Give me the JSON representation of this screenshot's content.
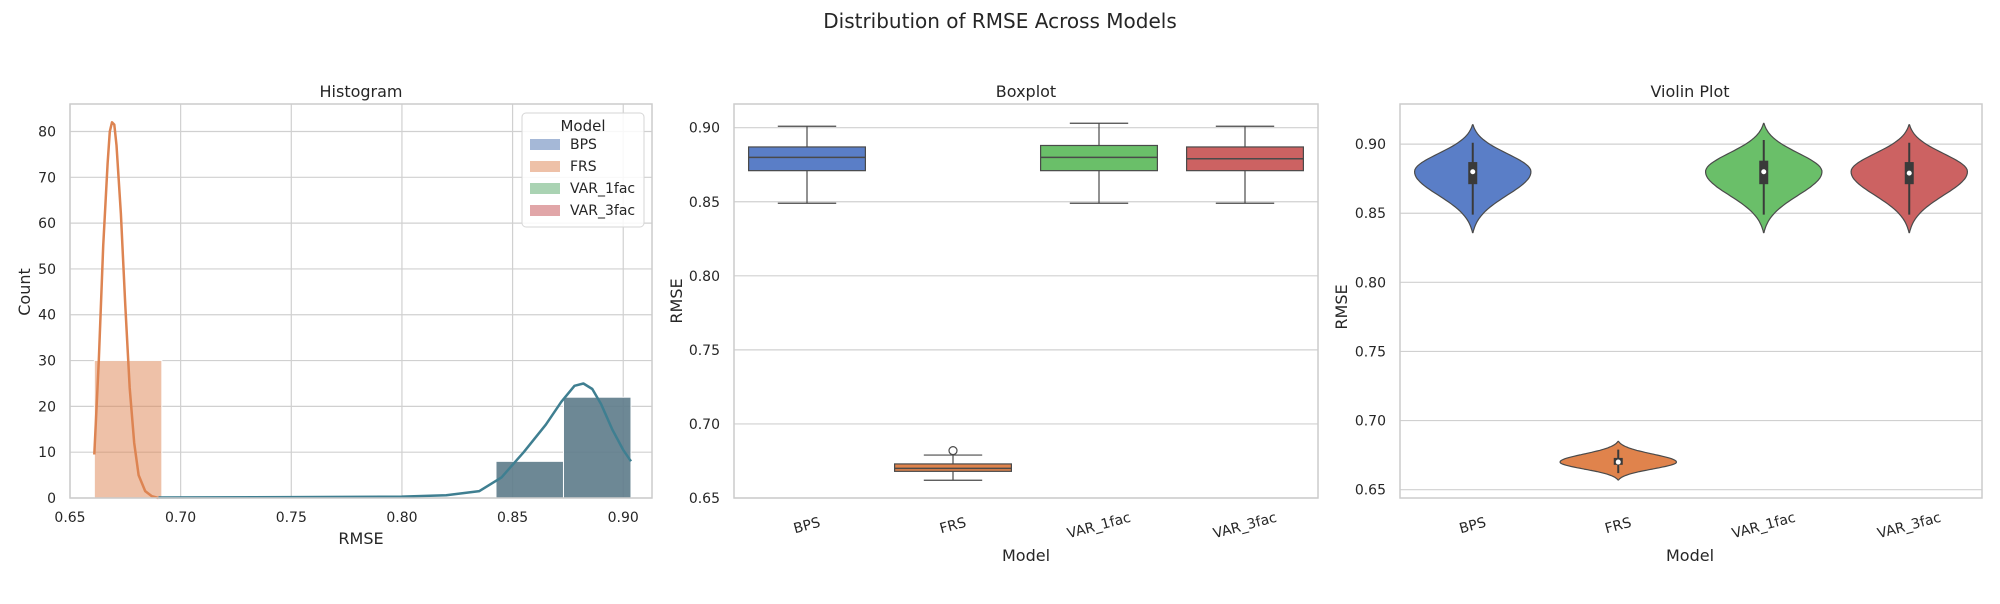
{
  "figure": {
    "title": "Distribution of RMSE Across Models"
  },
  "colors": {
    "BPS": "#4c72b0",
    "FRS": "#dd8452",
    "VAR_1fac": "#55a868",
    "VAR_3fac": "#c44e52",
    "box_BPS": "#5a7ec7",
    "box_FRS": "#e0834c",
    "box_VAR_1fac": "#6abf69",
    "box_VAR_3fac": "#cc6262",
    "grid": "#d0d0d0",
    "spine": "#cccccc",
    "median_line": "#4a4a4a",
    "hist_overlap": "#5d7b8a",
    "kde_BPS": "#3f7f91"
  },
  "chart_data": [
    {
      "type": "bar",
      "subtype": "histogram",
      "title": "Histogram",
      "xlabel": "RMSE",
      "ylabel": "Count",
      "xlim": [
        0.65,
        0.913
      ],
      "ylim": [
        0,
        86
      ],
      "xticks": [
        0.65,
        0.7,
        0.75,
        0.8,
        0.85,
        0.9
      ],
      "xtick_labels": [
        "0.65",
        "0.70",
        "0.75",
        "0.80",
        "0.85",
        "0.90"
      ],
      "yticks": [
        0,
        10,
        20,
        30,
        40,
        50,
        60,
        70,
        80
      ],
      "ytick_labels": [
        "0",
        "10",
        "20",
        "30",
        "40",
        "50",
        "60",
        "70",
        "80"
      ],
      "grid": true,
      "legend": {
        "title": "Model",
        "placement": "top-right",
        "entries": [
          "BPS",
          "FRS",
          "VAR_1fac",
          "VAR_3fac"
        ]
      },
      "bins": [
        {
          "model": "FRS",
          "x0": 0.661,
          "x1": 0.6915,
          "count": 30
        },
        {
          "model": "overlap",
          "x0": 0.8425,
          "x1": 0.873,
          "count": 8
        },
        {
          "model": "overlap",
          "x0": 0.873,
          "x1": 0.9035,
          "count": 22
        }
      ],
      "kde": [
        {
          "model": "FRS",
          "x": [
            0.661,
            0.663,
            0.665,
            0.667,
            0.668,
            0.669,
            0.67,
            0.671,
            0.673,
            0.675,
            0.677,
            0.679,
            0.681,
            0.684,
            0.687,
            0.69
          ],
          "y": [
            9.5,
            30,
            55,
            73,
            80,
            82,
            81.5,
            77,
            62,
            42,
            24,
            12,
            5,
            1.5,
            0.4,
            0
          ]
        },
        {
          "model": "BPS",
          "x": [
            0.69,
            0.75,
            0.8,
            0.82,
            0.835,
            0.845,
            0.855,
            0.865,
            0.872,
            0.878,
            0.882,
            0.886,
            0.89,
            0.895,
            0.9,
            0.9035
          ],
          "y": [
            0.1,
            0.2,
            0.3,
            0.6,
            1.5,
            4.5,
            10,
            16,
            21,
            24.5,
            25,
            23.8,
            20.5,
            15,
            10.5,
            8
          ]
        }
      ]
    },
    {
      "type": "box",
      "title": "Boxplot",
      "xlabel": "Model",
      "ylabel": "RMSE",
      "ylim": [
        0.65,
        0.916
      ],
      "yticks": [
        0.65,
        0.7,
        0.75,
        0.8,
        0.85,
        0.9
      ],
      "ytick_labels": [
        "0.65",
        "0.70",
        "0.75",
        "0.80",
        "0.85",
        "0.90"
      ],
      "categories": [
        "BPS",
        "FRS",
        "VAR_1fac",
        "VAR_3fac"
      ],
      "grid": true,
      "boxes": [
        {
          "model": "BPS",
          "whislo": 0.849,
          "q1": 0.871,
          "med": 0.88,
          "q3": 0.887,
          "whishi": 0.901,
          "fliers": []
        },
        {
          "model": "FRS",
          "whislo": 0.662,
          "q1": 0.668,
          "med": 0.67,
          "q3": 0.673,
          "whishi": 0.679,
          "fliers": [
            0.682
          ]
        },
        {
          "model": "VAR_1fac",
          "whislo": 0.849,
          "q1": 0.871,
          "med": 0.88,
          "q3": 0.888,
          "whishi": 0.903,
          "fliers": []
        },
        {
          "model": "VAR_3fac",
          "whislo": 0.849,
          "q1": 0.871,
          "med": 0.879,
          "q3": 0.887,
          "whishi": 0.901,
          "fliers": []
        }
      ]
    },
    {
      "type": "violin",
      "title": "Violin Plot",
      "xlabel": "Model",
      "ylabel": "RMSE",
      "ylim": [
        0.644,
        0.929
      ],
      "yticks": [
        0.65,
        0.7,
        0.75,
        0.8,
        0.85,
        0.9
      ],
      "ytick_labels": [
        "0.65",
        "0.70",
        "0.75",
        "0.80",
        "0.85",
        "0.90"
      ],
      "categories": [
        "BPS",
        "FRS",
        "VAR_1fac",
        "VAR_3fac"
      ],
      "grid": true,
      "violins": [
        {
          "model": "BPS",
          "min": 0.836,
          "max": 0.914,
          "mode": 0.88,
          "q1": 0.871,
          "med": 0.88,
          "q3": 0.887,
          "whislo": 0.849,
          "whishi": 0.901
        },
        {
          "model": "FRS",
          "min": 0.657,
          "max": 0.685,
          "mode": 0.67,
          "q1": 0.668,
          "med": 0.67,
          "q3": 0.673,
          "whislo": 0.662,
          "whishi": 0.679
        },
        {
          "model": "VAR_1fac",
          "min": 0.836,
          "max": 0.915,
          "mode": 0.88,
          "q1": 0.871,
          "med": 0.88,
          "q3": 0.888,
          "whislo": 0.849,
          "whishi": 0.903
        },
        {
          "model": "VAR_3fac",
          "min": 0.836,
          "max": 0.914,
          "mode": 0.88,
          "q1": 0.871,
          "med": 0.879,
          "q3": 0.887,
          "whislo": 0.849,
          "whishi": 0.901
        }
      ]
    }
  ]
}
